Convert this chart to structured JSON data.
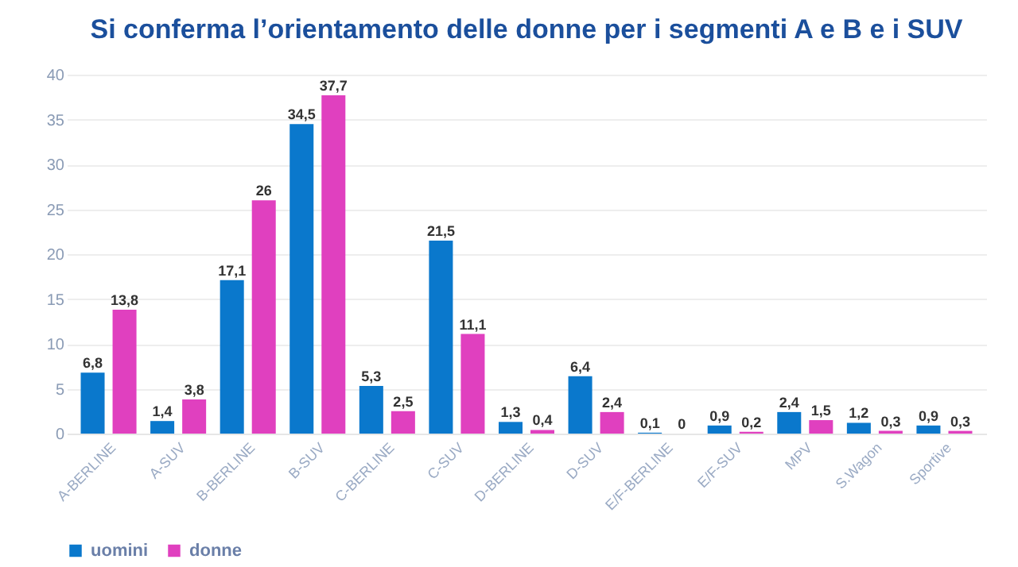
{
  "chart_data": {
    "type": "bar",
    "title": "Si conferma l’orientamento delle donne per i segmenti A e B e i SUV",
    "categories": [
      "A-BERLINE",
      "A-SUV",
      "B-BERLINE",
      "B-SUV",
      "C-BERLINE",
      "C-SUV",
      "D-BERLINE",
      "D-SUV",
      "E/F-BERLINE",
      "E/F-SUV",
      "MPV",
      "S.Wagon",
      "Sportive"
    ],
    "series": [
      {
        "name": "uomini",
        "color": "#0a78cc",
        "values": [
          6.8,
          1.4,
          17.1,
          34.5,
          5.3,
          21.5,
          1.3,
          6.4,
          0.1,
          0.9,
          2.4,
          1.2,
          0.9
        ],
        "value_labels": [
          "6,8",
          "1,4",
          "17,1",
          "34,5",
          "5,3",
          "21,5",
          "1,3",
          "6,4",
          "0,1",
          "0,9",
          "2,4",
          "1,2",
          "0,9"
        ]
      },
      {
        "name": "donne",
        "color": "#e040bf",
        "values": [
          13.8,
          3.8,
          26,
          37.7,
          2.5,
          11.1,
          0.4,
          2.4,
          0,
          0.2,
          1.5,
          0.3,
          0.3
        ],
        "value_labels": [
          "13,8",
          "3,8",
          "26",
          "37,7",
          "2,5",
          "11,1",
          "0,4",
          "2,4",
          "0",
          "0,2",
          "1,5",
          "0,3",
          "0,3"
        ]
      }
    ],
    "ylim": [
      0,
      40
    ],
    "yticks": [
      0,
      5,
      10,
      15,
      20,
      25,
      30,
      35,
      40
    ],
    "grid": "y",
    "legend": "bottom"
  }
}
